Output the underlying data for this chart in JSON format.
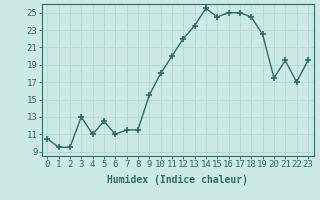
{
  "x": [
    0,
    1,
    2,
    3,
    4,
    5,
    6,
    7,
    8,
    9,
    10,
    11,
    12,
    13,
    14,
    15,
    16,
    17,
    18,
    19,
    20,
    21,
    22,
    23
  ],
  "y": [
    10.5,
    9.5,
    9.5,
    13.0,
    11.0,
    12.5,
    11.0,
    11.5,
    11.5,
    15.5,
    18.0,
    20.0,
    22.0,
    23.5,
    25.5,
    24.5,
    25.0,
    25.0,
    24.5,
    22.5,
    17.5,
    19.5,
    17.0,
    19.5
  ],
  "bg_color": "#cce9e5",
  "line_color": "#2e6e65",
  "grid_color": "#b8dbd8",
  "marker": "+",
  "markersize": 4,
  "linewidth": 1.0,
  "xlabel": "Humidex (Indice chaleur)",
  "xlabel_fontsize": 7,
  "ytick_labels": [
    9,
    11,
    13,
    15,
    17,
    19,
    21,
    23,
    25
  ],
  "xtick_labels": [
    0,
    1,
    2,
    3,
    4,
    5,
    6,
    7,
    8,
    9,
    10,
    11,
    12,
    13,
    14,
    15,
    16,
    17,
    18,
    19,
    20,
    21,
    22,
    23
  ],
  "ylim": [
    8.5,
    26.0
  ],
  "xlim": [
    -0.5,
    23.5
  ],
  "tick_fontsize": 6.5
}
